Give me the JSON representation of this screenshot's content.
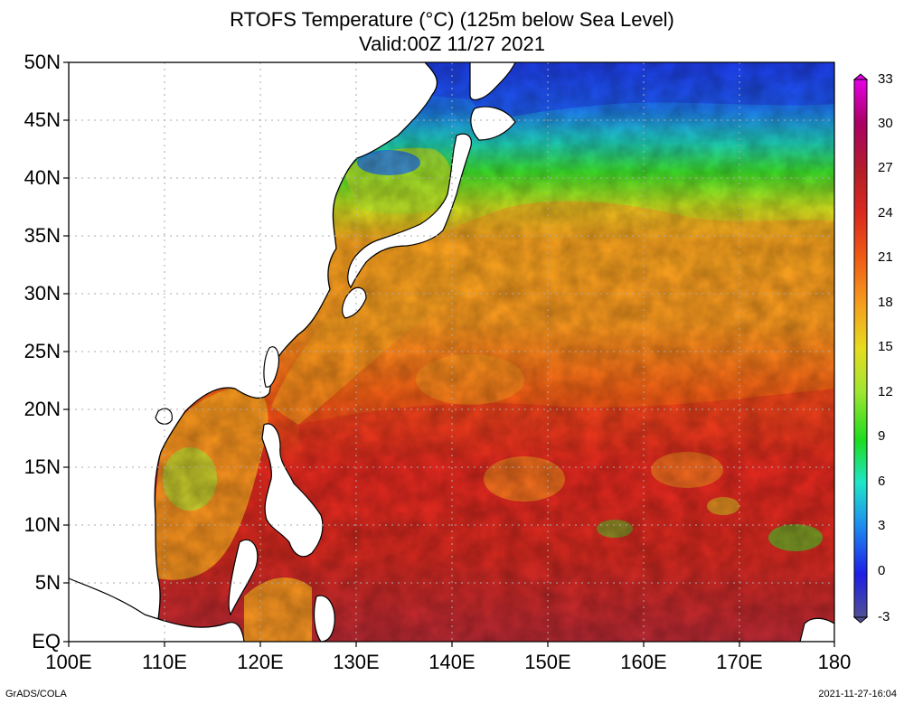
{
  "title_line1": "RTOFS Temperature (°C) (125m below Sea Level)",
  "title_line2": "Valid:00Z 11/27 2021",
  "lat_labels": [
    "50N",
    "45N",
    "40N",
    "35N",
    "30N",
    "25N",
    "20N",
    "15N",
    "10N",
    "5N",
    "EQ"
  ],
  "lon_labels": [
    "100E",
    "110E",
    "120E",
    "130E",
    "140E",
    "150E",
    "160E",
    "170E",
    "180"
  ],
  "colorbar": {
    "ticks": [
      "33",
      "30",
      "27",
      "24",
      "21",
      "18",
      "15",
      "12",
      "9",
      "6",
      "3",
      "0",
      "-3"
    ],
    "colors": [
      "#e600e6",
      "#aa0064",
      "#b41e28",
      "#dc2a1e",
      "#f05a14",
      "#f5a01e",
      "#e6dc1e",
      "#a0e632",
      "#1edc1e",
      "#1ee6c8",
      "#1e8cf0",
      "#1e1ee6",
      "#505096"
    ]
  },
  "map": {
    "region": "Western North Pacific",
    "lon_range": [
      100,
      180
    ],
    "lat_range": [
      0,
      50
    ],
    "grid": true,
    "field": "Sea temperature at 125 m depth",
    "units": "°C"
  },
  "footer_left": "GrADS/COLA",
  "footer_right": "2021-11-27-16:04"
}
